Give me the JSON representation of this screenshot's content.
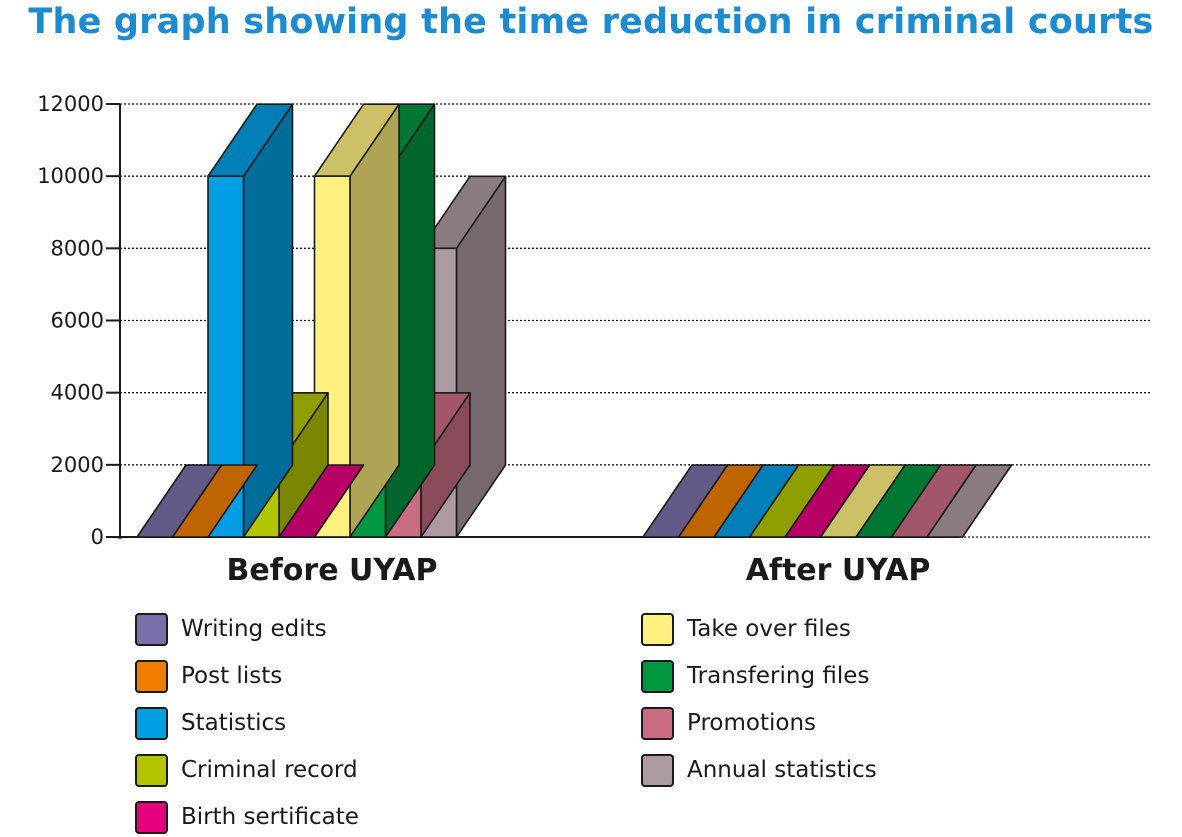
{
  "chart_data": {
    "type": "bar",
    "title": "The graph showing the time reduction in criminal courts",
    "xlabel": "",
    "ylabel": "",
    "ylim": [
      0,
      12000
    ],
    "yticks": [
      "0",
      "2000",
      "4000",
      "6000",
      "8000",
      "10000",
      "12000"
    ],
    "grid": "dotted horizontal",
    "categories": [
      "Before UYAP",
      "After UYAP"
    ],
    "series": [
      {
        "name": "Writing edits",
        "color": "#7b6fa9",
        "values": [
          0,
          0
        ]
      },
      {
        "name": "Post lists",
        "color": "#ee7d00",
        "values": [
          0,
          0
        ]
      },
      {
        "name": "Statistics",
        "color": "#009fe3",
        "values": [
          10000,
          0
        ]
      },
      {
        "name": "Criminal record",
        "color": "#b2c600",
        "values": [
          2000,
          0
        ]
      },
      {
        "name": "Birth sertificate",
        "color": "#e5007e",
        "values": [
          0,
          0
        ]
      },
      {
        "name": "Take over files",
        "color": "#fff17f",
        "values": [
          10000,
          0
        ]
      },
      {
        "name": "Transfering files",
        "color": "#009640",
        "values": [
          10000,
          0
        ]
      },
      {
        "name": "Promotions",
        "color": "#c96d83",
        "values": [
          2000,
          0
        ]
      },
      {
        "name": "Annual statistics",
        "color": "#ac9aa3",
        "values": [
          8000,
          0
        ]
      }
    ],
    "legend_position": "bottom"
  }
}
